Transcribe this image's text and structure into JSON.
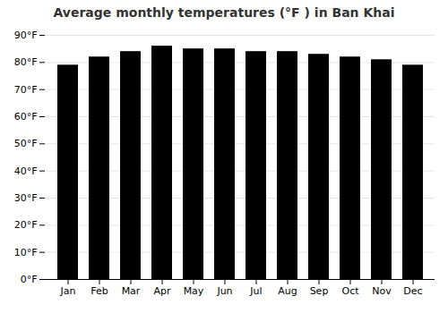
{
  "chart_data": {
    "type": "bar",
    "title": "Average monthly temperatures (°F ) in Ban Khai",
    "categories": [
      "Jan",
      "Feb",
      "Mar",
      "Apr",
      "May",
      "Jun",
      "Jul",
      "Aug",
      "Sep",
      "Oct",
      "Nov",
      "Dec"
    ],
    "values": [
      79,
      82,
      84,
      86,
      85,
      85,
      84,
      84,
      83,
      82,
      81,
      79
    ],
    "ylim": [
      0,
      90
    ],
    "yticks": [
      {
        "value": 0,
        "label": "0°F"
      },
      {
        "value": 10,
        "label": "10°F"
      },
      {
        "value": 20,
        "label": "20°F"
      },
      {
        "value": 30,
        "label": "30°F"
      },
      {
        "value": 40,
        "label": "40°F"
      },
      {
        "value": 50,
        "label": "50°F"
      },
      {
        "value": 60,
        "label": "60°F"
      },
      {
        "value": 70,
        "label": "70°F"
      },
      {
        "value": 80,
        "label": "80°F"
      },
      {
        "value": 90,
        "label": "90°F"
      }
    ],
    "grid": true
  }
}
